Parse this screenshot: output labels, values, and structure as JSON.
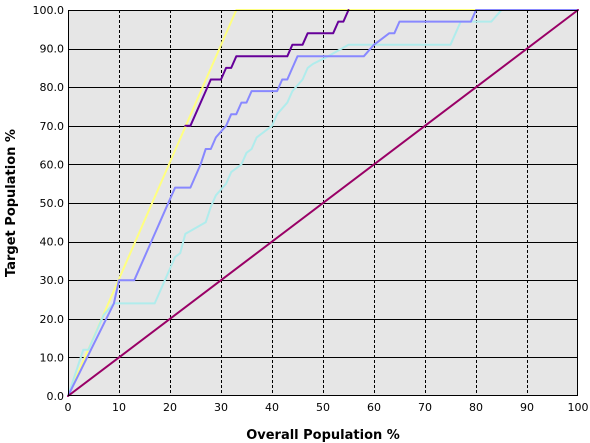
{
  "chart_data": {
    "type": "line",
    "title": "",
    "xlabel": "Overall Population %",
    "ylabel": "Target Population %",
    "xlim": [
      0,
      100
    ],
    "ylim": [
      0,
      100
    ],
    "xticks": [
      "0",
      "10",
      "20",
      "30",
      "40",
      "50",
      "60",
      "70",
      "80",
      "90",
      "100"
    ],
    "yticks": [
      "0.0",
      "10.0",
      "20.0",
      "30.0",
      "40.0",
      "50.0",
      "60.0",
      "70.0",
      "80.0",
      "90.0",
      "100.0"
    ],
    "grid": {
      "vertical": "dashed",
      "horizontal": "solid"
    },
    "background_color": "#e6e6e6",
    "series": [
      {
        "color": "#ffff80",
        "style": "solid",
        "points": [
          [
            0,
            0
          ],
          [
            33,
            100
          ],
          [
            100,
            100
          ]
        ]
      },
      {
        "color": "#b0ecec",
        "style": "solid",
        "points": [
          [
            0,
            0
          ],
          [
            3,
            12
          ],
          [
            4,
            12
          ],
          [
            5,
            15
          ],
          [
            7,
            21
          ],
          [
            9,
            24
          ],
          [
            17,
            24
          ],
          [
            18,
            27
          ],
          [
            19,
            30
          ],
          [
            20,
            33
          ],
          [
            21,
            36
          ],
          [
            22,
            37
          ],
          [
            23,
            42
          ],
          [
            27,
            45
          ],
          [
            28,
            49
          ],
          [
            29,
            52
          ],
          [
            31,
            55
          ],
          [
            32,
            58
          ],
          [
            34,
            60
          ],
          [
            35,
            63
          ],
          [
            36,
            64
          ],
          [
            37,
            67
          ],
          [
            40,
            70
          ],
          [
            41,
            73
          ],
          [
            43,
            76
          ],
          [
            44,
            79
          ],
          [
            46,
            82
          ],
          [
            47,
            85
          ],
          [
            48,
            86
          ],
          [
            51,
            88
          ],
          [
            55,
            91
          ],
          [
            75,
            91
          ],
          [
            76,
            94
          ],
          [
            77,
            97
          ],
          [
            83,
            97
          ],
          [
            85,
            100
          ],
          [
            100,
            100
          ]
        ]
      },
      {
        "color": "#8888ff",
        "style": "solid",
        "points": [
          [
            0,
            0
          ],
          [
            9,
            24
          ],
          [
            10,
            30
          ],
          [
            13,
            30
          ],
          [
            17,
            42
          ],
          [
            18,
            45
          ],
          [
            19,
            48
          ],
          [
            21,
            54
          ],
          [
            24,
            54
          ],
          [
            26,
            60
          ],
          [
            27,
            64
          ],
          [
            28,
            64
          ],
          [
            29,
            67
          ],
          [
            31,
            70
          ],
          [
            32,
            73
          ],
          [
            33,
            73
          ],
          [
            34,
            76
          ],
          [
            35,
            76
          ],
          [
            36,
            79
          ],
          [
            41,
            79
          ],
          [
            42,
            82
          ],
          [
            43,
            82
          ],
          [
            44,
            85
          ],
          [
            45,
            88
          ],
          [
            58,
            88
          ],
          [
            60,
            91
          ],
          [
            61,
            92
          ],
          [
            63,
            94
          ],
          [
            64,
            94
          ],
          [
            65,
            97
          ],
          [
            79,
            97
          ],
          [
            80,
            100
          ],
          [
            100,
            100
          ]
        ]
      },
      {
        "color": "#660099",
        "style": "solid",
        "points": [
          [
            23,
            70
          ],
          [
            24,
            70
          ],
          [
            27,
            79
          ],
          [
            28,
            82
          ],
          [
            30,
            82
          ],
          [
            31,
            85
          ],
          [
            32,
            85
          ],
          [
            33,
            88
          ],
          [
            43,
            88
          ],
          [
            44,
            91
          ],
          [
            46,
            91
          ],
          [
            47,
            94
          ],
          [
            52,
            94
          ],
          [
            53,
            97
          ],
          [
            54,
            97
          ],
          [
            55,
            100
          ]
        ]
      },
      {
        "color": "#990066",
        "style": "solid",
        "points": [
          [
            0,
            0
          ],
          [
            100,
            100
          ]
        ]
      }
    ]
  }
}
